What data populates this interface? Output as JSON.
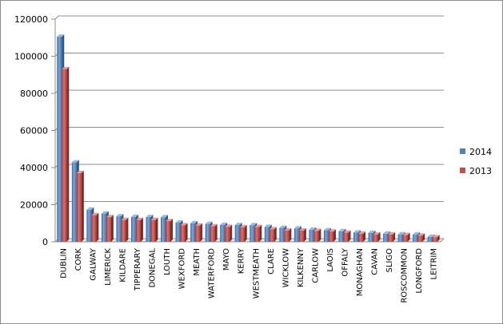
{
  "chart_data": {
    "type": "bar",
    "categories": [
      "DUBLIN",
      "CORK",
      "GALWAY",
      "LIMERICK",
      "KILDARE",
      "TIPPERARY",
      "DONEGAL",
      "LOUTH",
      "WEXFORD",
      "MEATH",
      "WATERFORD",
      "MAYO",
      "KERRY",
      "WESTMEATH",
      "CLARE",
      "WICKLOW",
      "KILKENNY",
      "CARLOW",
      "LAOIS",
      "OFFALY",
      "MONAGHAN",
      "CAVAN",
      "SLIGO",
      "ROSCOMMON",
      "LONGFORD",
      "LEITRIM"
    ],
    "series": [
      {
        "name": "2014",
        "color": "#4f81bd",
        "values": [
          110500,
          42800,
          17300,
          15200,
          13700,
          13400,
          13300,
          13200,
          10300,
          10000,
          9600,
          9100,
          9000,
          8900,
          8000,
          7500,
          7200,
          6500,
          6200,
          5700,
          5000,
          4800,
          4400,
          4000,
          3900,
          2700
        ]
      },
      {
        "name": "2013",
        "color": "#c0504d",
        "values": [
          93000,
          37000,
          14300,
          13200,
          11700,
          11700,
          11700,
          11100,
          8800,
          8700,
          8300,
          8000,
          7800,
          7900,
          6700,
          6100,
          6000,
          5800,
          5500,
          4900,
          4300,
          3900,
          3900,
          3600,
          3300,
          2400
        ]
      }
    ],
    "ylim": [
      0,
      120000
    ],
    "yticks": [
      0,
      20000,
      40000,
      60000,
      80000,
      100000,
      120000
    ],
    "ytick_labels": [
      "0",
      "20000",
      "40000",
      "60000",
      "80000",
      "100000",
      "120000"
    ],
    "grid": true,
    "legend_position": "right",
    "title": "",
    "xlabel": "",
    "ylabel": ""
  }
}
